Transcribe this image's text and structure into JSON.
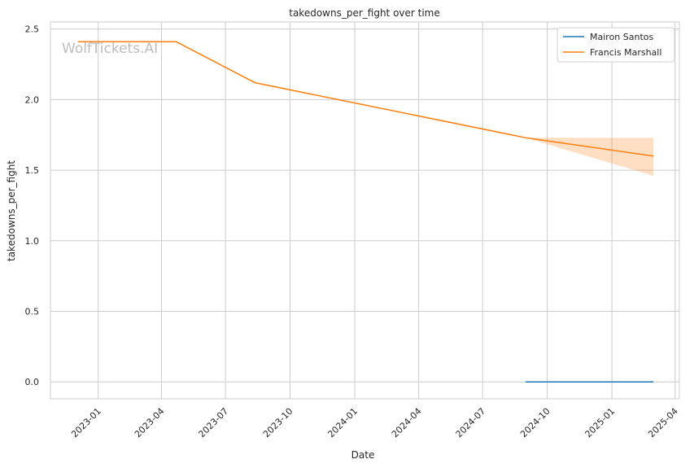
{
  "watermark": "WolfTickets.AI",
  "chart_data": {
    "type": "line",
    "title": "takedowns_per_fight over time",
    "xlabel": "Date",
    "ylabel": "takedowns_per_fight",
    "xlim": [
      "2022-10-25",
      "2025-04-07"
    ],
    "ylim": [
      -0.12,
      2.55
    ],
    "x_ticks": [
      "2023-01",
      "2023-04",
      "2023-07",
      "2023-10",
      "2024-01",
      "2024-04",
      "2024-07",
      "2024-10",
      "2025-01",
      "2025-04"
    ],
    "y_ticks": [
      "0.0",
      "0.5",
      "1.0",
      "1.5",
      "2.0",
      "2.5"
    ],
    "grid": true,
    "legend_position": "top-right",
    "series": [
      {
        "name": "Mairon Santos",
        "color": "#1f77b4",
        "x": [
          "2024-08-31",
          "2025-03-01"
        ],
        "y": [
          0.0,
          0.0
        ]
      },
      {
        "name": "Francis Marshall",
        "color": "#ff7f0e",
        "x": [
          "2022-12-03",
          "2023-04-22",
          "2023-08-12",
          "2024-08-31",
          "2025-03-01"
        ],
        "y": [
          2.41,
          2.41,
          2.12,
          1.73,
          1.6
        ],
        "band": {
          "x": [
            "2024-08-31",
            "2025-03-01"
          ],
          "lower": [
            1.73,
            1.46
          ],
          "upper": [
            1.73,
            1.73
          ]
        }
      }
    ]
  }
}
